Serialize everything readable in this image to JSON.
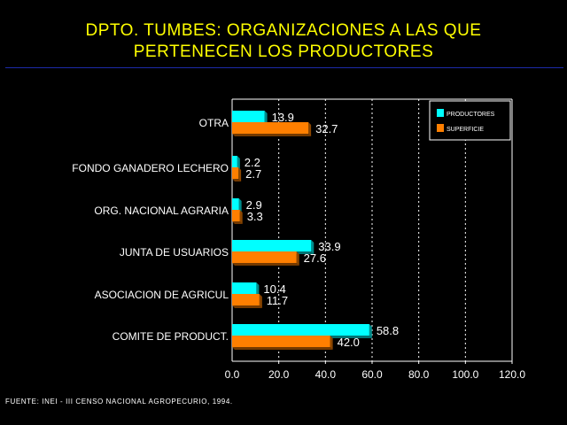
{
  "title": {
    "line1": "DPTO. TUMBES: ORGANIZACIONES A LAS QUE",
    "line2": "PERTENECEN LOS PRODUCTORES"
  },
  "source": "FUENTE: INEI - III CENSO NACIONAL AGROPECURIO, 1994.",
  "colors": {
    "background": "#000000",
    "title": "#ffff00",
    "text": "#ffffff",
    "rule": "#1c2ba8",
    "productores": "#00ffff",
    "superficie": "#ff7f00"
  },
  "chart_data": {
    "type": "bar",
    "orientation": "horizontal",
    "categories": [
      "OTRA",
      "FONDO GANADERO LECHERO",
      "ORG. NACIONAL AGRARIA",
      "JUNTA DE USUARIOS",
      "ASOCIACION DE AGRICUL",
      "COMITE DE PRODUCT."
    ],
    "series": [
      {
        "name": "PRODUCTORES",
        "color": "#00ffff",
        "values": [
          13.9,
          2.2,
          2.9,
          33.9,
          10.4,
          58.8
        ],
        "labels": [
          "13.9",
          "2.2",
          "2.9",
          "33.9",
          "10.4",
          "58.8"
        ]
      },
      {
        "name": "SUPERFICIE",
        "color": "#ff7f00",
        "values": [
          32.7,
          2.7,
          3.3,
          27.6,
          11.7,
          42.0
        ],
        "labels": [
          "32.7",
          "2.7",
          "3.3",
          "27.6",
          "11.7",
          "42.0"
        ]
      }
    ],
    "xlim": [
      0,
      120
    ],
    "xticks": [
      "0.0",
      "20.0",
      "40.0",
      "60.0",
      "80.0",
      "100.0",
      "120.0"
    ],
    "grid": "vertical dashed",
    "legend_position": "top-right",
    "xlabel": "",
    "ylabel": ""
  }
}
